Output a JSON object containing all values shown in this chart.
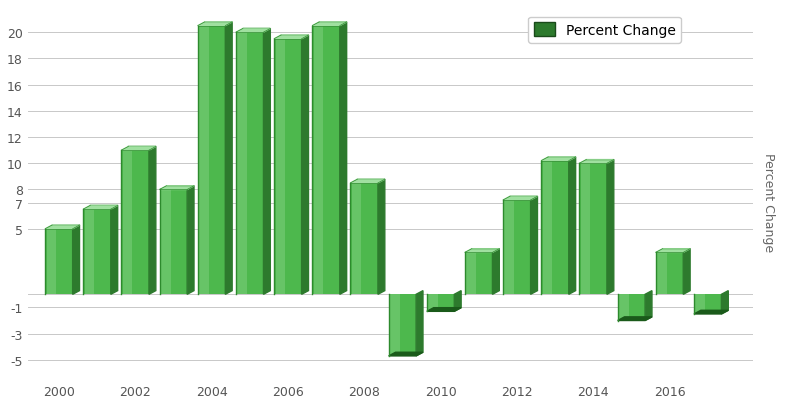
{
  "years": [
    2000,
    2001,
    2002,
    2003,
    2004,
    2005,
    2006,
    2007,
    2008,
    2009,
    2010,
    2011,
    2012,
    2013,
    2014,
    2015,
    2016,
    2017
  ],
  "values": [
    5.0,
    6.5,
    11.0,
    8.0,
    20.5,
    20.0,
    19.5,
    20.5,
    8.5,
    -4.7,
    -1.3,
    3.2,
    7.2,
    10.2,
    10.0,
    -2.0,
    3.2,
    -1.5
  ],
  "legend_label": "Percent Change",
  "legend_color": "#2d7a2d",
  "ylabel": "Percent Change",
  "background_color": "#ffffff",
  "grid_color": "#c8c8c8",
  "yticks": [
    -5,
    -3,
    -1,
    5,
    7,
    8,
    10,
    12,
    14,
    16,
    18,
    20
  ],
  "ytick_labels": [
    "-5",
    "-3",
    "-1",
    "5",
    "7",
    "8",
    "10",
    "12",
    "14",
    "16",
    "18",
    "20"
  ],
  "xticks": [
    2000,
    2002,
    2004,
    2006,
    2008,
    2010,
    2012,
    2014,
    2016
  ]
}
